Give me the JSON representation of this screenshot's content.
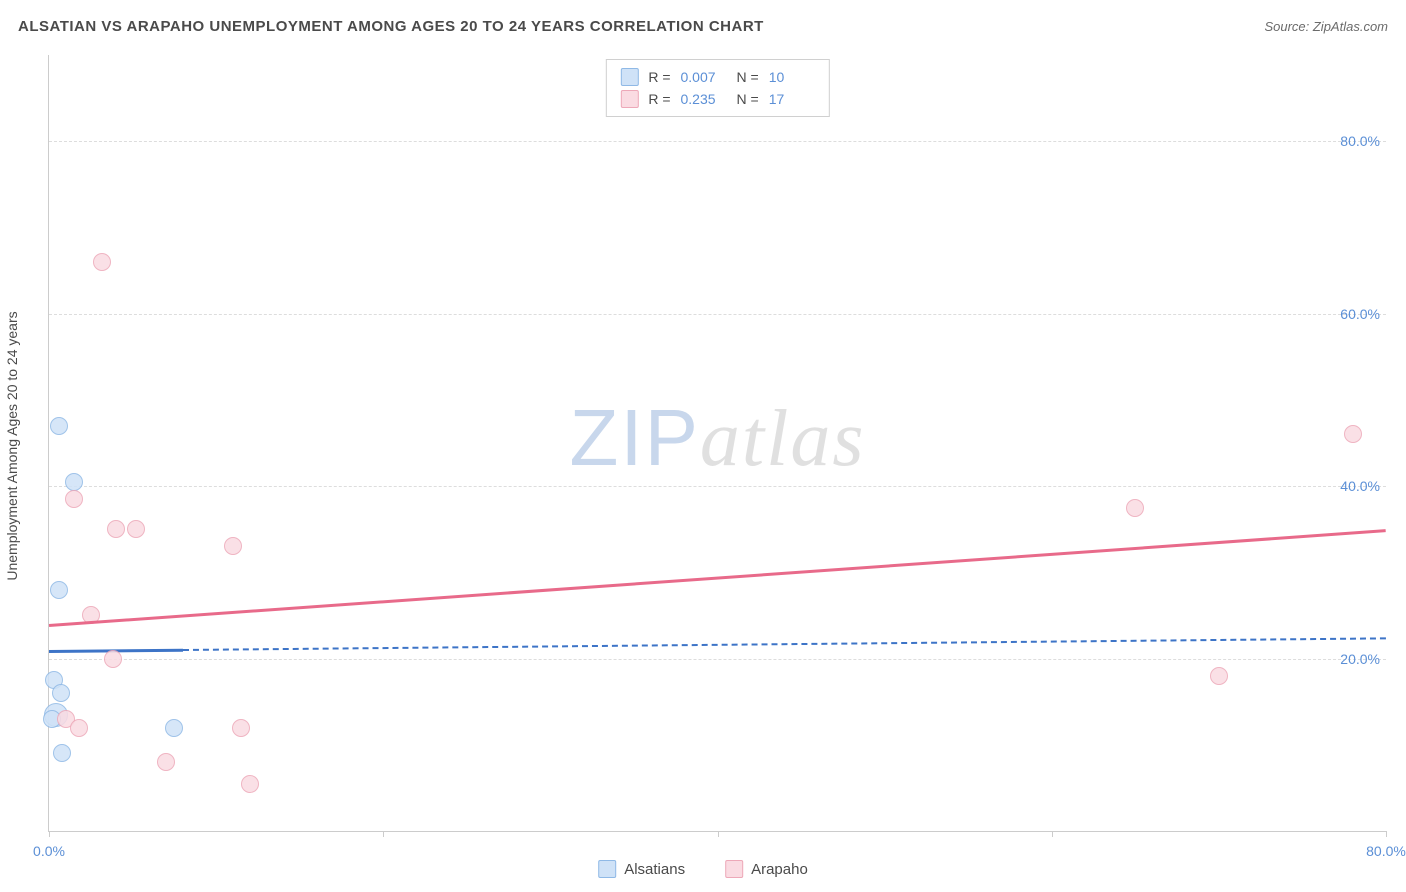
{
  "header": {
    "title": "ALSATIAN VS ARAPAHO UNEMPLOYMENT AMONG AGES 20 TO 24 YEARS CORRELATION CHART",
    "source": "Source: ZipAtlas.com"
  },
  "watermark": {
    "part1": "ZIP",
    "part2": "atlas"
  },
  "chart": {
    "type": "scatter",
    "y_axis_label": "Unemployment Among Ages 20 to 24 years",
    "background_color": "#ffffff",
    "grid_color": "#dddddd",
    "axis_color": "#cccccc",
    "xlim": [
      0,
      80
    ],
    "ylim": [
      0,
      90
    ],
    "y_ticks": [
      {
        "value": 20,
        "label": "20.0%"
      },
      {
        "value": 40,
        "label": "40.0%"
      },
      {
        "value": 60,
        "label": "60.0%"
      },
      {
        "value": 80,
        "label": "80.0%"
      }
    ],
    "x_ticks": [
      {
        "value": 0,
        "label": "0.0%"
      },
      {
        "value": 20,
        "label": ""
      },
      {
        "value": 40,
        "label": ""
      },
      {
        "value": 60,
        "label": ""
      },
      {
        "value": 80,
        "label": "80.0%"
      }
    ],
    "series": [
      {
        "name": "Alsatians",
        "fill_color": "#cfe2f7",
        "stroke_color": "#8fb9e6",
        "line_color": "#3d74c7",
        "marker_radius": 9,
        "marker_opacity": 0.85,
        "R": "0.007",
        "N": "10",
        "trend": {
          "y_at_xmin": 21.0,
          "y_at_xmax": 22.5,
          "solid_until_x": 8
        },
        "points": [
          {
            "x": 0.6,
            "y": 47.0
          },
          {
            "x": 1.5,
            "y": 40.5
          },
          {
            "x": 0.6,
            "y": 28.0
          },
          {
            "x": 0.3,
            "y": 17.5
          },
          {
            "x": 0.7,
            "y": 16.0
          },
          {
            "x": 0.4,
            "y": 13.5,
            "r": 12
          },
          {
            "x": 0.2,
            "y": 13.0
          },
          {
            "x": 7.5,
            "y": 12.0
          },
          {
            "x": 0.8,
            "y": 9.0
          }
        ]
      },
      {
        "name": "Arapaho",
        "fill_color": "#fadbe2",
        "stroke_color": "#eda8b8",
        "line_color": "#e86a8a",
        "marker_radius": 9,
        "marker_opacity": 0.85,
        "R": "0.235",
        "N": "17",
        "trend": {
          "y_at_xmin": 24.0,
          "y_at_xmax": 35.0,
          "solid_until_x": 80
        },
        "points": [
          {
            "x": 3.2,
            "y": 66.0
          },
          {
            "x": 78.0,
            "y": 46.0
          },
          {
            "x": 1.5,
            "y": 38.5
          },
          {
            "x": 65.0,
            "y": 37.5
          },
          {
            "x": 4.0,
            "y": 35.0
          },
          {
            "x": 5.2,
            "y": 35.0
          },
          {
            "x": 11.0,
            "y": 33.0
          },
          {
            "x": 2.5,
            "y": 25.0
          },
          {
            "x": 3.8,
            "y": 20.0
          },
          {
            "x": 70.0,
            "y": 18.0
          },
          {
            "x": 1.0,
            "y": 13.0
          },
          {
            "x": 1.8,
            "y": 12.0
          },
          {
            "x": 11.5,
            "y": 12.0
          },
          {
            "x": 7.0,
            "y": 8.0
          },
          {
            "x": 12.0,
            "y": 5.5
          }
        ]
      }
    ],
    "legend_top": {
      "label_R": "R =",
      "label_N": "N ="
    },
    "axis_label_color": "#5b8fd6",
    "text_color": "#4a4a4a",
    "label_fontsize": 14,
    "title_fontsize": 15
  }
}
